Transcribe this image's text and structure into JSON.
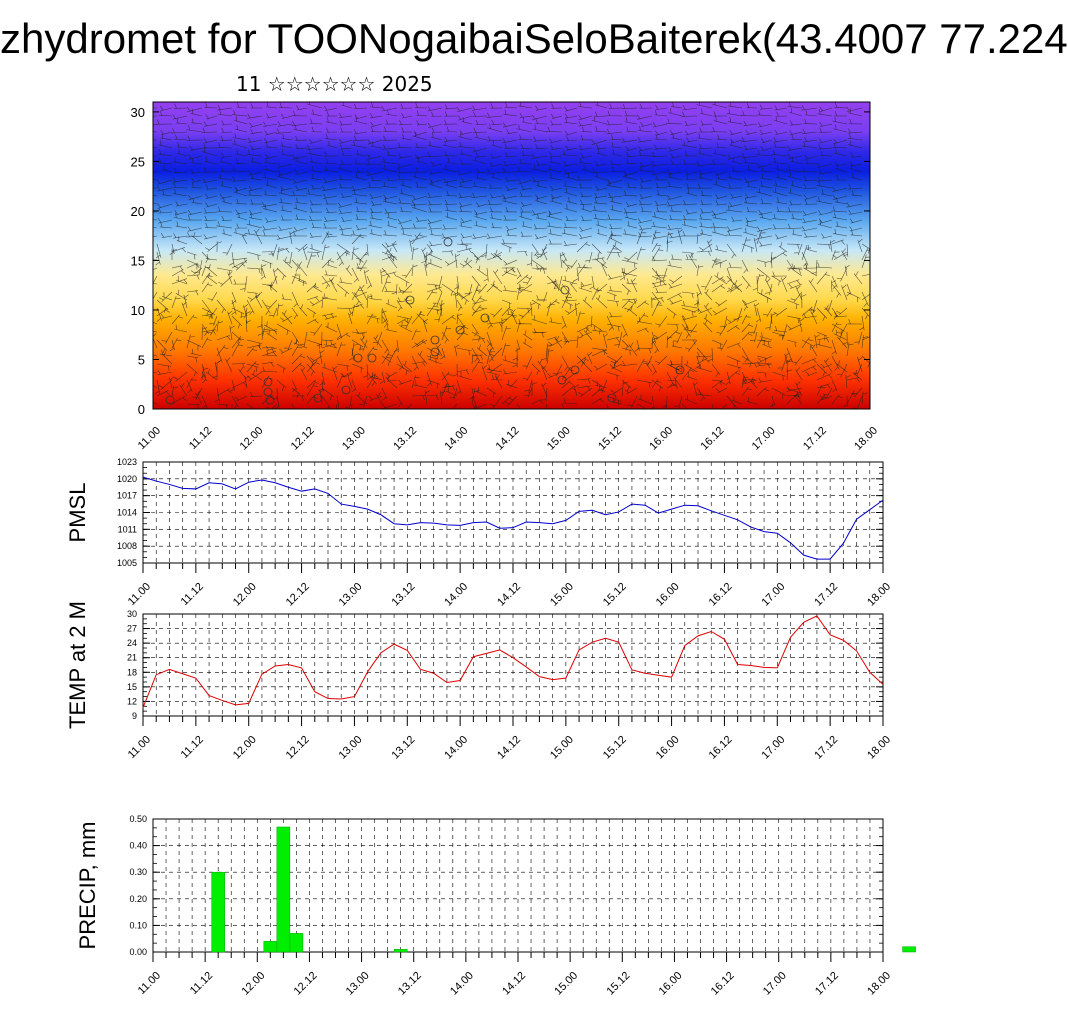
{
  "header": {
    "title": "zhydromet for TOONogaibaiSeloBaiterek(43.4007 77.224",
    "subtitle": "11 ☆☆☆☆☆☆ 2025"
  },
  "time_labels": [
    "11.00",
    "11.12",
    "12.00",
    "12.12",
    "13.00",
    "13.12",
    "14.00",
    "14.12",
    "15.00",
    "15.12",
    "16.00",
    "16.12",
    "17.00",
    "17.12",
    "18.00"
  ],
  "chart_data": [
    {
      "type": "heatmap",
      "name": "cross-section",
      "y_ticks": [
        0,
        5,
        10,
        15,
        20,
        25,
        30
      ],
      "ylim": [
        0,
        31
      ],
      "xlim": [
        0,
        168
      ],
      "colormap": [
        "#cc0000",
        "#ff3300",
        "#ff7a00",
        "#ffb000",
        "#ffd84a",
        "#ffe98e",
        "#c8e8f7",
        "#5aa8f0",
        "#1f55e0",
        "#0a1ee0",
        "#2f28e8",
        "#7a3ef2",
        "#9440f0"
      ],
      "colormap_heights": [
        0,
        3,
        6,
        9,
        11,
        13.5,
        16,
        19,
        22,
        24,
        26,
        28,
        31
      ]
    },
    {
      "type": "line",
      "ylabel": "PMSL",
      "ylim": [
        1005,
        1023
      ],
      "y_ticks": [
        1005,
        1008,
        1011,
        1014,
        1017,
        1020,
        1023
      ],
      "color": "#0000cc",
      "x": [
        0,
        3,
        6,
        9,
        12,
        15,
        18,
        21,
        24,
        27,
        30,
        33,
        36,
        39,
        42,
        45,
        48,
        51,
        54,
        57,
        60,
        63,
        66,
        69,
        72,
        75,
        78,
        81,
        84,
        87,
        90,
        93,
        96,
        99,
        102,
        105,
        108,
        111,
        114,
        117,
        120,
        123,
        126,
        129,
        132,
        135,
        138,
        141,
        144,
        147,
        150,
        153,
        156,
        159,
        162,
        165,
        168
      ],
      "values": [
        1020.3,
        1019.6,
        1019.0,
        1018.3,
        1018.2,
        1019.3,
        1019.1,
        1018.2,
        1019.4,
        1019.8,
        1019.3,
        1018.5,
        1017.8,
        1018.2,
        1017.4,
        1015.5,
        1015.1,
        1014.6,
        1013.6,
        1012.0,
        1011.8,
        1012.2,
        1012.1,
        1011.8,
        1011.7,
        1012.2,
        1012.3,
        1011.2,
        1011.3,
        1012.3,
        1012.2,
        1012.0,
        1012.6,
        1014.2,
        1014.4,
        1013.6,
        1014.1,
        1015.5,
        1015.3,
        1013.9,
        1014.6,
        1015.3,
        1015.2,
        1014.3,
        1013.5,
        1012.7,
        1011.4,
        1010.6,
        1010.3,
        1008.6,
        1006.4,
        1005.7,
        1005.7,
        1008.5,
        1012.8,
        1014.5,
        1016.2
      ]
    },
    {
      "type": "line",
      "ylabel": "TEMP at 2 M",
      "ylim": [
        9,
        30
      ],
      "y_ticks": [
        9,
        12,
        15,
        18,
        21,
        24,
        27,
        30
      ],
      "color": "#dd0000",
      "x": [
        0,
        3,
        6,
        9,
        12,
        15,
        18,
        21,
        24,
        27,
        30,
        33,
        36,
        39,
        42,
        45,
        48,
        51,
        54,
        57,
        60,
        63,
        66,
        69,
        72,
        75,
        78,
        81,
        84,
        87,
        90,
        93,
        96,
        99,
        102,
        105,
        108,
        111,
        114,
        117,
        120,
        123,
        126,
        129,
        132,
        135,
        138,
        141,
        144,
        147,
        150,
        153,
        156,
        159,
        162,
        165,
        168
      ],
      "values": [
        10.7,
        17.5,
        18.6,
        17.7,
        16.8,
        13.2,
        12.2,
        11.3,
        11.6,
        17.6,
        19.3,
        19.6,
        18.9,
        14.0,
        12.6,
        12.5,
        13.0,
        18.1,
        22.0,
        23.8,
        22.5,
        18.6,
        17.8,
        15.9,
        16.3,
        21.2,
        21.9,
        22.6,
        21.0,
        19.1,
        17.1,
        16.5,
        16.8,
        22.6,
        24.2,
        25.0,
        24.2,
        18.5,
        17.8,
        17.4,
        17.0,
        23.5,
        25.5,
        26.4,
        24.8,
        19.6,
        19.4,
        19.0,
        18.9,
        25.2,
        28.3,
        29.6,
        25.7,
        24.6,
        22.4,
        18.0,
        15.5
      ]
    },
    {
      "type": "bar",
      "ylabel": "PRECIP, mm",
      "ylim": [
        0,
        0.5
      ],
      "y_ticks": [
        "0.00",
        "0.10",
        "0.20",
        "0.30",
        "0.40",
        "0.50"
      ],
      "color": "#00ee00",
      "x": [
        15,
        27,
        30,
        33,
        57,
        174
      ],
      "width": 3,
      "values": [
        0.3,
        0.04,
        0.47,
        0.07,
        0.01,
        0.02
      ]
    }
  ]
}
